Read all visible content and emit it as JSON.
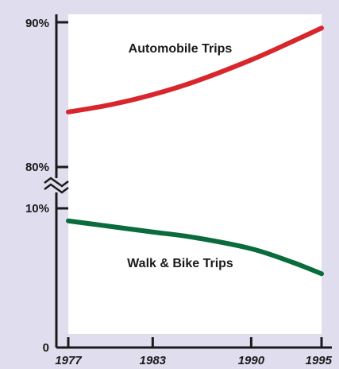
{
  "chart_data": {
    "type": "line",
    "title": "",
    "xlabel": "",
    "ylabel": "",
    "x_ticks": [
      "1977",
      "1983",
      "1990",
      "1995"
    ],
    "x_range": [
      1977,
      1995
    ],
    "axis_break": {
      "symbol": "≈",
      "between": [
        "10%",
        "80%"
      ]
    },
    "y_ticks_lower": [
      "0",
      "10%"
    ],
    "y_ticks_upper": [
      "80%",
      "90%"
    ],
    "ylim_lower": [
      0,
      10
    ],
    "ylim_upper": [
      80,
      90
    ],
    "grid": false,
    "legend": "none",
    "series": [
      {
        "name": "Automobile Trips",
        "color": "#d8262c",
        "segment": "upper",
        "x": [
          1977,
          1980,
          1983,
          1986,
          1990,
          1993,
          1995
        ],
        "y": [
          83.8,
          84.3,
          85.0,
          85.9,
          87.4,
          88.7,
          89.6
        ]
      },
      {
        "name": "Walk & Bike Trips",
        "color": "#0a6b3c",
        "segment": "lower",
        "x": [
          1977,
          1980,
          1983,
          1986,
          1990,
          1993,
          1995
        ],
        "y": [
          9.1,
          8.7,
          8.3,
          7.9,
          7.1,
          6.1,
          5.3
        ]
      }
    ]
  }
}
